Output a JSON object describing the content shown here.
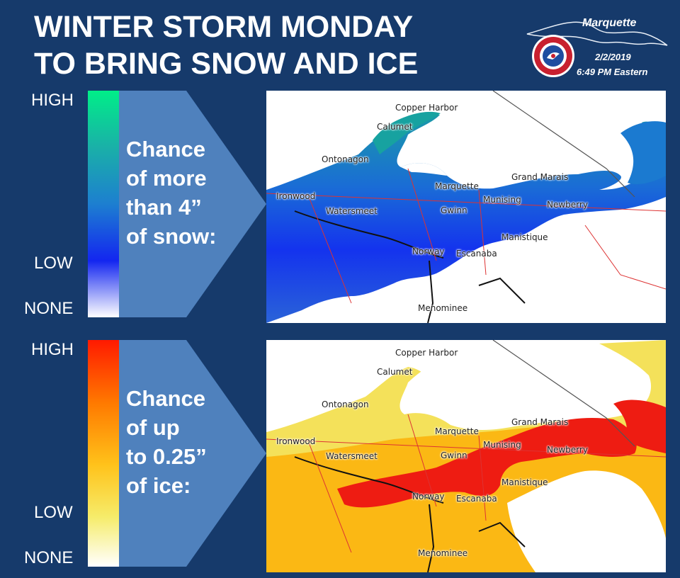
{
  "header": {
    "title_line1": "WINTER STORM MONDAY",
    "title_line2": "TO BRING SNOW AND ICE"
  },
  "badge": {
    "office": "Marquette",
    "date": "2/2/2019",
    "time": "6:49 PM Eastern",
    "seal_text": "NATIONAL WEATHER SERVICE",
    "seal_icon": "nws-seal-icon"
  },
  "snow_panel": {
    "scale": {
      "high": "HIGH",
      "low": "LOW",
      "none": "NONE"
    },
    "arrow_text": [
      "Chance",
      "of more",
      "than 4”",
      "of snow:"
    ],
    "colors": {
      "high": "#00ee88",
      "mid": "#1d7fd0",
      "low": "#1326f0",
      "none": "#ffffff"
    }
  },
  "ice_panel": {
    "scale": {
      "high": "HIGH",
      "low": "LOW",
      "none": "NONE"
    },
    "arrow_text": [
      "Chance",
      "of up",
      "to 0.25”",
      "of ice:"
    ],
    "colors": {
      "high": "#ff1a00",
      "mid": "#ffc21a",
      "low": "#f6ec6a",
      "none": "#ffffff"
    }
  },
  "map_labels": {
    "copper_harbor": "Copper Harbor",
    "calumet": "Calumet",
    "ontonagon": "Ontonagon",
    "ironwood": "Ironwood",
    "watersmeet": "Watersmeet",
    "marquette": "Marquette",
    "gwinn": "Gwinn",
    "munising": "Munising",
    "grand_marais": "Grand Marais",
    "newberry": "Newberry",
    "manistique": "Manistique",
    "norway": "Norway",
    "escanaba": "Escanaba",
    "menominee": "Menominee"
  }
}
